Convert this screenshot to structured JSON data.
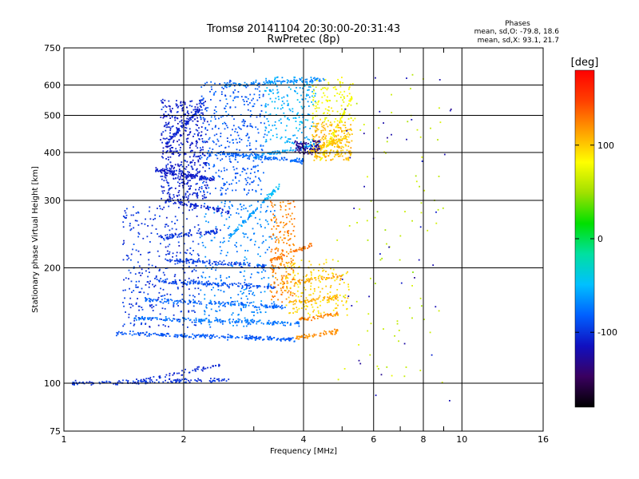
{
  "chart_data": {
    "type": "scatter",
    "title": "Tromsø 20141104 20:30:00-20:31:43",
    "subtitle": "RwPretec (8p)",
    "xlabel": "Frequency [MHz]",
    "ylabel": "Stationary phase Virtual Height [km]",
    "x_scale": "log",
    "y_scale": "log",
    "xlim": [
      1,
      16
    ],
    "ylim": [
      75,
      750
    ],
    "x_ticks": [
      {
        "value": 1,
        "label": "1"
      },
      {
        "value": 2,
        "label": "2"
      },
      {
        "value": 4,
        "label": "4"
      },
      {
        "value": 6,
        "label": "6"
      },
      {
        "value": 8,
        "label": "8"
      },
      {
        "value": 10,
        "label": "10"
      },
      {
        "value": 16,
        "label": "16"
      }
    ],
    "x_grid": [
      2,
      4,
      6,
      8,
      10
    ],
    "x_minor": [
      3,
      5,
      7,
      9
    ],
    "y_ticks": [
      {
        "value": 75,
        "label": "75"
      },
      {
        "value": 100,
        "label": "100"
      },
      {
        "value": 200,
        "label": "200"
      },
      {
        "value": 300,
        "label": "300"
      },
      {
        "value": 400,
        "label": "400"
      },
      {
        "value": 500,
        "label": "500"
      },
      {
        "value": 600,
        "label": "600"
      },
      {
        "value": 750,
        "label": "750"
      }
    ],
    "y_grid": [
      100,
      200,
      300,
      400,
      500,
      600
    ],
    "grid": true,
    "colorbar": {
      "label": "[deg]",
      "range": [
        -180,
        180
      ],
      "ticks": [
        {
          "value": 100,
          "label": "100"
        },
        {
          "value": 0,
          "label": "0"
        },
        {
          "value": -100,
          "label": "-100"
        }
      ],
      "colors": [
        "#000000",
        "#3a0060",
        "#1010c0",
        "#0060ff",
        "#00c0ff",
        "#00e0a0",
        "#00e000",
        "#a0e000",
        "#ffff00",
        "#ffa000",
        "#ff4000",
        "#ff0000"
      ]
    },
    "stats": {
      "heading": "Phases",
      "line1": "mean, sd,O: -79.8, 18.6",
      "line2": "mean, sd,X:  93.1, 21.7"
    },
    "traces": [
      {
        "x0": 1.05,
        "x1": 2.6,
        "y0": 100,
        "y1": 102,
        "phase": -100,
        "n": 140
      },
      {
        "x0": 1.5,
        "x1": 2.5,
        "y0": 101,
        "y1": 112,
        "phase": -105,
        "n": 60
      },
      {
        "x0": 1.35,
        "x1": 3.8,
        "y0": 135,
        "y1": 130,
        "phase": -85,
        "n": 220
      },
      {
        "x0": 3.8,
        "x1": 4.9,
        "y0": 131,
        "y1": 137,
        "phase": 120,
        "n": 60
      },
      {
        "x0": 1.5,
        "x1": 3.9,
        "y0": 148,
        "y1": 143,
        "phase": -75,
        "n": 180
      },
      {
        "x0": 3.9,
        "x1": 4.9,
        "y0": 146,
        "y1": 152,
        "phase": 125,
        "n": 50
      },
      {
        "x0": 1.6,
        "x1": 3.6,
        "y0": 165,
        "y1": 158,
        "phase": -80,
        "n": 160
      },
      {
        "x0": 3.7,
        "x1": 4.9,
        "y0": 162,
        "y1": 168,
        "phase": 110,
        "n": 50
      },
      {
        "x0": 1.7,
        "x1": 3.4,
        "y0": 185,
        "y1": 178,
        "phase": -90,
        "n": 150
      },
      {
        "x0": 3.5,
        "x1": 5.0,
        "y0": 182,
        "y1": 190,
        "phase": 115,
        "n": 60
      },
      {
        "x0": 1.8,
        "x1": 3.2,
        "y0": 210,
        "y1": 202,
        "phase": -95,
        "n": 120
      },
      {
        "x0": 3.3,
        "x1": 4.2,
        "y0": 208,
        "y1": 230,
        "phase": 130,
        "n": 50
      },
      {
        "x0": 1.75,
        "x1": 2.5,
        "y0": 240,
        "y1": 250,
        "phase": -100,
        "n": 80
      },
      {
        "x0": 1.8,
        "x1": 2.6,
        "y0": 300,
        "y1": 280,
        "phase": -105,
        "n": 90
      },
      {
        "x0": 1.7,
        "x1": 2.4,
        "y0": 360,
        "y1": 340,
        "phase": -110,
        "n": 110
      },
      {
        "x0": 1.8,
        "x1": 2.2,
        "y0": 420,
        "y1": 520,
        "phase": -105,
        "n": 90
      },
      {
        "x0": 2.3,
        "x1": 4.0,
        "y0": 400,
        "y1": 380,
        "phase": -80,
        "n": 140
      },
      {
        "x0": 3.0,
        "x1": 4.4,
        "y0": 390,
        "y1": 420,
        "phase": -60,
        "n": 80
      },
      {
        "x0": 4.1,
        "x1": 5.2,
        "y0": 400,
        "y1": 440,
        "phase": 100,
        "n": 90
      },
      {
        "x0": 2.5,
        "x1": 4.6,
        "y0": 600,
        "y1": 620,
        "phase": -70,
        "n": 110
      },
      {
        "x0": 2.6,
        "x1": 3.2,
        "y0": 240,
        "y1": 300,
        "phase": -60,
        "n": 60
      },
      {
        "x0": 3.2,
        "x1": 3.5,
        "y0": 300,
        "y1": 330,
        "phase": -50,
        "n": 40
      },
      {
        "x0": 4.4,
        "x1": 5.3,
        "y0": 380,
        "y1": 560,
        "phase": 80,
        "n": 70
      }
    ],
    "clouds": [
      {
        "x0": 1.75,
        "x1": 2.3,
        "y0": 300,
        "y1": 550,
        "phase": -108,
        "n": 520
      },
      {
        "x0": 1.4,
        "x1": 2.2,
        "y0": 140,
        "y1": 290,
        "phase": -100,
        "n": 320
      },
      {
        "x0": 2.2,
        "x1": 3.2,
        "y0": 310,
        "y1": 620,
        "phase": -85,
        "n": 360
      },
      {
        "x0": 2.2,
        "x1": 3.4,
        "y0": 140,
        "y1": 300,
        "phase": -70,
        "n": 280
      },
      {
        "x0": 3.2,
        "x1": 4.3,
        "y0": 420,
        "y1": 630,
        "phase": -55,
        "n": 200
      },
      {
        "x0": 3.3,
        "x1": 3.8,
        "y0": 160,
        "y1": 300,
        "phase": 125,
        "n": 200
      },
      {
        "x0": 3.6,
        "x1": 5.2,
        "y0": 150,
        "y1": 210,
        "phase": 95,
        "n": 180
      },
      {
        "x0": 4.2,
        "x1": 5.3,
        "y0": 380,
        "y1": 480,
        "phase": 105,
        "n": 240
      },
      {
        "x0": 4.2,
        "x1": 5.4,
        "y0": 480,
        "y1": 630,
        "phase": 80,
        "n": 110
      },
      {
        "x0": 3.8,
        "x1": 4.4,
        "y0": 395,
        "y1": 430,
        "phase": -130,
        "n": 90
      },
      {
        "x0": 4.8,
        "x1": 9.0,
        "y0": 100,
        "y1": 650,
        "phase": 60,
        "n": 90
      },
      {
        "x0": 5.0,
        "x1": 9.5,
        "y0": 75,
        "y1": 650,
        "phase": -120,
        "n": 40
      }
    ]
  }
}
